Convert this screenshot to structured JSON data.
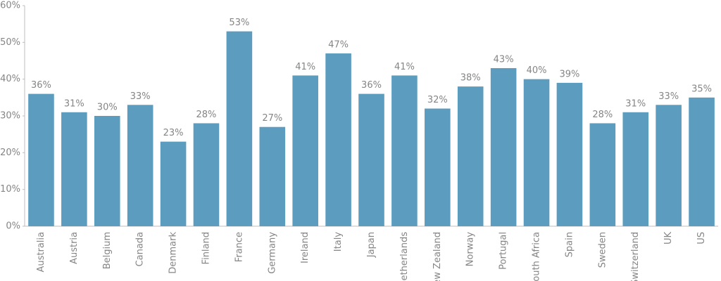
{
  "chart_data": {
    "type": "bar",
    "categories": [
      "Australia",
      "Austria",
      "Belgium",
      "Canada",
      "Denmark",
      "Finland",
      "France",
      "Germany",
      "Ireland",
      "Italy",
      "Japan",
      "Netherlands",
      "New Zealand",
      "Norway",
      "Portugal",
      "South Africa",
      "Spain",
      "Sweden",
      "Switzerland",
      "UK",
      "US"
    ],
    "values": [
      36,
      31,
      30,
      33,
      23,
      28,
      53,
      27,
      41,
      47,
      36,
      41,
      32,
      38,
      43,
      40,
      39,
      28,
      31,
      33,
      35
    ],
    "value_labels": [
      "36%",
      "31%",
      "30%",
      "33%",
      "23%",
      "28%",
      "53%",
      "27%",
      "41%",
      "47%",
      "36%",
      "41%",
      "32%",
      "38%",
      "43%",
      "40%",
      "39%",
      "28%",
      "31%",
      "33%",
      "35%"
    ],
    "color": "#5b9cbf",
    "ylim": [
      0,
      60
    ],
    "yticks": [
      {
        "value": 0,
        "label": "0%"
      },
      {
        "value": 10,
        "label": "10%"
      },
      {
        "value": 20,
        "label": "20%"
      },
      {
        "value": 30,
        "label": "30%"
      },
      {
        "value": 40,
        "label": "40%"
      },
      {
        "value": 50,
        "label": "50%"
      },
      {
        "value": 60,
        "label": "60%"
      }
    ],
    "grid": false
  }
}
